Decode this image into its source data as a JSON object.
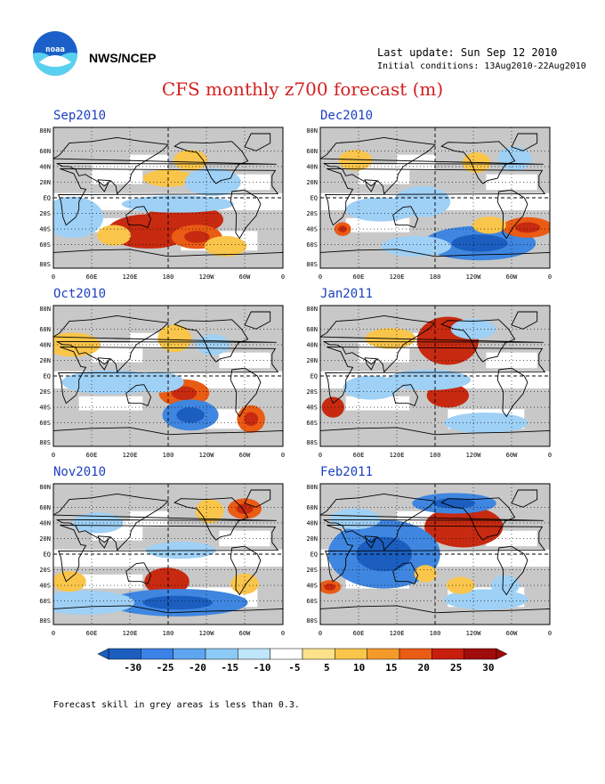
{
  "header": {
    "org": "NWS/NCEP",
    "last_update": "Last update: Sun Sep 12 2010",
    "initial_conditions": "Initial conditions: 13Aug2010-22Aug2010"
  },
  "title": "CFS monthly z700 forecast (m)",
  "panels": [
    {
      "label": "Sep2010",
      "col": 0,
      "row": 0,
      "anomalies": [
        {
          "lon": 150,
          "lat": -43,
          "rx": 30,
          "ry": 10,
          "level": 3
        },
        {
          "lon": 205,
          "lat": -28,
          "rx": 28,
          "ry": 9,
          "level": 3
        },
        {
          "lon": 225,
          "lat": -50,
          "rx": 18,
          "ry": 7,
          "level": 2
        },
        {
          "lon": 95,
          "lat": -48,
          "rx": 12,
          "ry": 6,
          "level": 1
        },
        {
          "lon": 270,
          "lat": -62,
          "rx": 15,
          "ry": 6,
          "level": 1
        },
        {
          "lon": 180,
          "lat": 25,
          "rx": 18,
          "ry": 5,
          "level": 1
        },
        {
          "lon": 215,
          "lat": 48,
          "rx": 12,
          "ry": 6,
          "level": 1
        },
        {
          "lon": 195,
          "lat": -8,
          "rx": 40,
          "ry": 5,
          "level": -1
        },
        {
          "lon": 30,
          "lat": -25,
          "rx": 22,
          "ry": 12,
          "level": -1
        },
        {
          "lon": 250,
          "lat": 20,
          "rx": 20,
          "ry": 8,
          "level": -1
        }
      ]
    },
    {
      "label": "Oct2010",
      "col": 0,
      "row": 1,
      "anomalies": [
        {
          "lon": 205,
          "lat": -22,
          "rx": 18,
          "ry": 8,
          "level": 2
        },
        {
          "lon": 215,
          "lat": -50,
          "rx": 20,
          "ry": 9,
          "level": -2
        },
        {
          "lon": 310,
          "lat": -55,
          "rx": 10,
          "ry": 8,
          "level": 2
        },
        {
          "lon": 190,
          "lat": 48,
          "rx": 12,
          "ry": 8,
          "level": 1
        },
        {
          "lon": 30,
          "lat": 40,
          "rx": 20,
          "ry": 7,
          "level": 1
        },
        {
          "lon": 90,
          "lat": -8,
          "rx": 35,
          "ry": 7,
          "level": -1
        },
        {
          "lon": 165,
          "lat": -8,
          "rx": 18,
          "ry": 6,
          "level": -1
        },
        {
          "lon": 250,
          "lat": 40,
          "rx": 12,
          "ry": 6,
          "level": -1
        }
      ]
    },
    {
      "label": "Nov2010",
      "col": 0,
      "row": 2,
      "anomalies": [
        {
          "lon": 178,
          "lat": -35,
          "rx": 16,
          "ry": 8,
          "level": 3
        },
        {
          "lon": 195,
          "lat": -62,
          "rx": 50,
          "ry": 8,
          "level": -2
        },
        {
          "lon": 50,
          "lat": -62,
          "rx": 35,
          "ry": 7,
          "level": -1
        },
        {
          "lon": 300,
          "lat": 58,
          "rx": 12,
          "ry": 6,
          "level": 2
        },
        {
          "lon": 245,
          "lat": 55,
          "rx": 10,
          "ry": 7,
          "level": 1
        },
        {
          "lon": 70,
          "lat": 40,
          "rx": 18,
          "ry": 6,
          "level": -1
        },
        {
          "lon": 200,
          "lat": 5,
          "rx": 25,
          "ry": 5,
          "level": -1
        },
        {
          "lon": 300,
          "lat": -38,
          "rx": 10,
          "ry": 6,
          "level": 1
        },
        {
          "lon": 25,
          "lat": -35,
          "rx": 12,
          "ry": 6,
          "level": 1
        }
      ]
    },
    {
      "label": "Dec2010",
      "col": 1,
      "row": 0,
      "anomalies": [
        {
          "lon": 250,
          "lat": -58,
          "rx": 40,
          "ry": 10,
          "level": -2
        },
        {
          "lon": 150,
          "lat": -62,
          "rx": 25,
          "ry": 6,
          "level": -1
        },
        {
          "lon": 325,
          "lat": -38,
          "rx": 18,
          "ry": 6,
          "level": 2
        },
        {
          "lon": 265,
          "lat": -35,
          "rx": 12,
          "ry": 5,
          "level": 1
        },
        {
          "lon": 160,
          "lat": -5,
          "rx": 20,
          "ry": 9,
          "level": -1
        },
        {
          "lon": 95,
          "lat": -15,
          "rx": 25,
          "ry": 7,
          "level": -1
        },
        {
          "lon": 305,
          "lat": 50,
          "rx": 12,
          "ry": 7,
          "level": -1
        },
        {
          "lon": 245,
          "lat": 45,
          "rx": 10,
          "ry": 6,
          "level": 1
        },
        {
          "lon": 55,
          "lat": 48,
          "rx": 12,
          "ry": 6,
          "level": 1
        },
        {
          "lon": 35,
          "lat": -40,
          "rx": 6,
          "ry": 4,
          "level": 2
        }
      ]
    },
    {
      "label": "Jan2011",
      "col": 1,
      "row": 1,
      "anomalies": [
        {
          "lon": 200,
          "lat": 45,
          "rx": 22,
          "ry": 14,
          "level": 3
        },
        {
          "lon": 200,
          "lat": -25,
          "rx": 15,
          "ry": 7,
          "level": 3
        },
        {
          "lon": 20,
          "lat": -40,
          "rx": 8,
          "ry": 6,
          "level": 3
        },
        {
          "lon": 240,
          "lat": 60,
          "rx": 16,
          "ry": 6,
          "level": -1
        },
        {
          "lon": 260,
          "lat": -60,
          "rx": 30,
          "ry": 6,
          "level": -1
        },
        {
          "lon": 170,
          "lat": -5,
          "rx": 30,
          "ry": 6,
          "level": -1
        },
        {
          "lon": 80,
          "lat": -15,
          "rx": 20,
          "ry": 7,
          "level": -1
        },
        {
          "lon": 110,
          "lat": 48,
          "rx": 18,
          "ry": 6,
          "level": 1
        }
      ]
    },
    {
      "label": "Feb2011",
      "col": 1,
      "row": 2,
      "anomalies": [
        {
          "lon": 225,
          "lat": 35,
          "rx": 28,
          "ry": 12,
          "level": 3
        },
        {
          "lon": 210,
          "lat": 65,
          "rx": 30,
          "ry": 6,
          "level": -2
        },
        {
          "lon": 100,
          "lat": 0,
          "rx": 40,
          "ry": 20,
          "level": -2
        },
        {
          "lon": 55,
          "lat": 45,
          "rx": 18,
          "ry": 6,
          "level": -1
        },
        {
          "lon": 260,
          "lat": -58,
          "rx": 30,
          "ry": 6,
          "level": -1
        },
        {
          "lon": 220,
          "lat": -40,
          "rx": 10,
          "ry": 5,
          "level": 1
        },
        {
          "lon": 15,
          "lat": -42,
          "rx": 8,
          "ry": 4,
          "level": 2
        },
        {
          "lon": 290,
          "lat": -40,
          "rx": 10,
          "ry": 6,
          "level": -1
        },
        {
          "lon": 165,
          "lat": -25,
          "rx": 8,
          "ry": 5,
          "level": 1
        }
      ]
    }
  ],
  "axes": {
    "lat_labels": [
      "80N",
      "60N",
      "40N",
      "20N",
      "EQ",
      "20S",
      "40S",
      "60S",
      "80S"
    ],
    "lat_values": [
      80,
      60,
      40,
      20,
      0,
      -20,
      -40,
      -60,
      -80
    ],
    "lon_labels": [
      "0",
      "60E",
      "120E",
      "180",
      "120W",
      "60W",
      "0"
    ],
    "lon_values": [
      0,
      60,
      120,
      180,
      240,
      300,
      360
    ]
  },
  "colorbar": {
    "labels": [
      "-30",
      "-25",
      "-20",
      "-15",
      "-10",
      "-5",
      "5",
      "10",
      "15",
      "20",
      "25",
      "30"
    ],
    "colors": [
      "#1b5ec0",
      "#3a82e8",
      "#5fa6f0",
      "#8ccbf7",
      "#bfe6fa",
      "#ffffff",
      "#fce38a",
      "#f9c54a",
      "#f49a2a",
      "#ea5b14",
      "#c71e0e",
      "#a00b0b"
    ]
  },
  "level_colors": {
    "3": "#c72a10",
    "2": "#ea5b14",
    "1": "#f9c54a",
    "-1": "#9fd0f5",
    "-2": "#3f86e0",
    "-3": "#1b5ec0"
  },
  "grey_color": "#c8c8c8",
  "footnote": "Forecast skill in grey areas is less than 0.3."
}
